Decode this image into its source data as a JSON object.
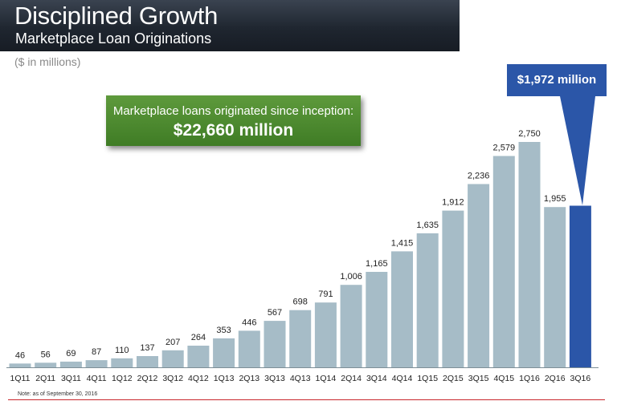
{
  "header": {
    "title": "Disciplined Growth",
    "subtitle": "Marketplace Loan Originations"
  },
  "units_label": "($ in millions)",
  "callout": {
    "line1": "Marketplace loans originated since inception:",
    "line2": "$22,660 million"
  },
  "highlight": {
    "label": "$1,972 million",
    "color": "#2b56a8"
  },
  "note": "Note: as of September 30, 2016",
  "colors": {
    "bar": "#a6bcc7",
    "highlight_bar": "#2b56a8",
    "callout_green": "#4a8a2e",
    "header_dark": "#1f2630",
    "rule_red": "#c8262c"
  },
  "chart_data": {
    "type": "bar",
    "categories": [
      "1Q11",
      "2Q11",
      "3Q11",
      "4Q11",
      "1Q12",
      "2Q12",
      "3Q12",
      "4Q12",
      "1Q13",
      "2Q13",
      "3Q13",
      "4Q13",
      "1Q14",
      "2Q14",
      "3Q14",
      "4Q14",
      "1Q15",
      "2Q15",
      "3Q15",
      "4Q15",
      "1Q16",
      "2Q16",
      "3Q16"
    ],
    "values": [
      46,
      56,
      69,
      87,
      110,
      137,
      207,
      264,
      353,
      446,
      567,
      698,
      791,
      1006,
      1165,
      1415,
      1635,
      1912,
      2236,
      2579,
      2750,
      1955,
      1972
    ],
    "data_labels": [
      "46",
      "56",
      "69",
      "87",
      "110",
      "137",
      "207",
      "264",
      "353",
      "446",
      "567",
      "698",
      "791",
      "1,006",
      "1,165",
      "1,415",
      "1,635",
      "1,912",
      "2,236",
      "2,579",
      "2,750",
      "1,955",
      ""
    ],
    "highlight_index": 22,
    "ylim": [
      0,
      2750
    ],
    "grid": false,
    "legend": "none",
    "title": "",
    "xlabel": "",
    "ylabel": ""
  }
}
